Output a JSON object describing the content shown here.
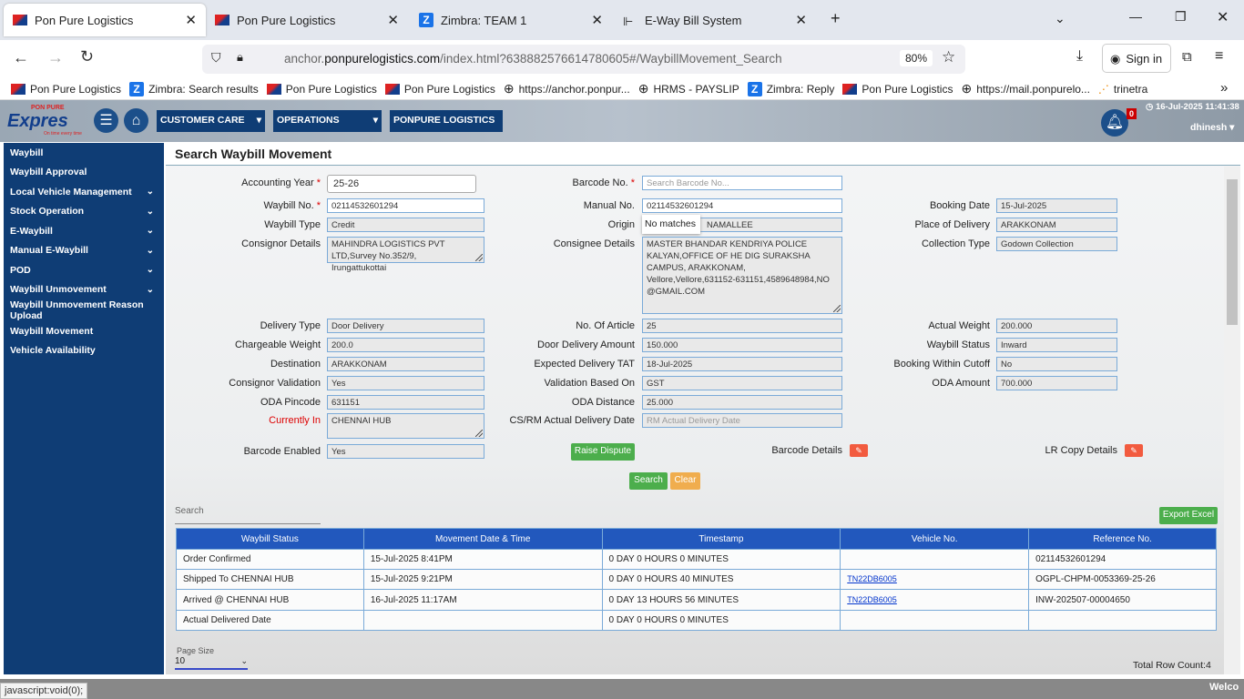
{
  "browser": {
    "tabs": [
      {
        "title": "Pon Pure Logistics",
        "active": true
      },
      {
        "title": "Pon Pure Logistics"
      },
      {
        "title": "Zimbra: TEAM 1"
      },
      {
        "title": "E-Way Bill System"
      }
    ],
    "url_prefix": "anchor.",
    "url_domain": "ponpurelogistics.com",
    "url_rest": "/index.html?638882576614780605#/WaybillMovement_Search",
    "zoom": "80%",
    "sign_in": "Sign in",
    "bookmarks": [
      "Pon Pure Logistics",
      "Zimbra: Search results",
      "Pon Pure Logistics",
      "Pon Pure Logistics",
      "https://anchor.ponpur...",
      "HRMS - PAYSLIP",
      "Zimbra: Reply",
      "Pon Pure Logistics",
      "https://mail.ponpurelo...",
      "trinetra"
    ],
    "status_text": "javascript:void(0);",
    "status_right": "Welco"
  },
  "header": {
    "logo_top": "PON PURE",
    "logo_main": "Expres",
    "logo_tag": "On time every time",
    "nav": [
      "CUSTOMER CARE",
      "OPERATIONS",
      "PONPURE LOGISTICS"
    ],
    "notif_count": "0",
    "datetime": "16-Jul-2025 11:41:38",
    "user": "dhinesh"
  },
  "sidebar": {
    "items": [
      {
        "label": "Waybill",
        "expand": false
      },
      {
        "label": "Waybill Approval",
        "expand": false
      },
      {
        "label": "Local Vehicle Management",
        "expand": true
      },
      {
        "label": "Stock Operation",
        "expand": true
      },
      {
        "label": "E-Waybill",
        "expand": true
      },
      {
        "label": "Manual E-Waybill",
        "expand": true
      },
      {
        "label": "POD",
        "expand": true
      },
      {
        "label": "Waybill Unmovement",
        "expand": true
      },
      {
        "label": "Waybill Unmovement Reason Upload",
        "expand": false
      },
      {
        "label": "Waybill Movement",
        "expand": false
      },
      {
        "label": "Vehicle Availability",
        "expand": false
      }
    ]
  },
  "page_title": "Search Waybill Movement",
  "form": {
    "col1": [
      {
        "label": "Accounting Year",
        "required": true,
        "value": "25-26",
        "kind": "select"
      },
      {
        "label": "Waybill No.",
        "required": true,
        "value": "02114532601294",
        "kind": "white"
      },
      {
        "label": "Waybill Type",
        "value": "Credit"
      },
      {
        "label": "Consignor Details",
        "value": "MAHINDRA LOGISTICS PVT LTD,Survey No.352/9, Irungattukottai",
        "kind": "textarea"
      },
      {
        "label": "Delivery Type",
        "value": "Door Delivery"
      },
      {
        "label": "Chargeable Weight",
        "value": "200.0"
      },
      {
        "label": "Destination",
        "value": "ARAKKONAM"
      },
      {
        "label": "Consignor Validation",
        "value": "Yes"
      },
      {
        "label": "ODA Pincode",
        "value": "631151"
      },
      {
        "label": "Currently In",
        "value": "CHENNAI HUB",
        "kind": "textarea",
        "red": true
      },
      {
        "label": "Barcode Enabled",
        "value": "Yes"
      }
    ],
    "col2": [
      {
        "label": "Barcode No.",
        "required": true,
        "placeholder": "Search Barcode No...",
        "kind": "white"
      },
      {
        "label": "Manual No.",
        "value": "02114532601294",
        "kind": "white"
      },
      {
        "label": "Origin",
        "value": "NAMALLEE",
        "popup": "No matches"
      },
      {
        "label": "Consignee Details",
        "value": "MASTER BHANDAR KENDRIYA POLICE KALYAN,OFFICE OF HE DIG SURAKSHA CAMPUS, ARAKKONAM, Vellore,Vellore,631152-631151,4589648984,NO @GMAIL.COM",
        "kind": "textarea"
      },
      {
        "label": "No. Of Article",
        "value": "25"
      },
      {
        "label": "Door Delivery Amount",
        "value": "150.000"
      },
      {
        "label": "Expected Delivery TAT",
        "value": "18-Jul-2025"
      },
      {
        "label": "Validation Based On",
        "value": "GST"
      },
      {
        "label": "ODA Distance",
        "value": "25.000"
      },
      {
        "label": "CS/RM Actual Delivery Date",
        "placeholder": "RM Actual Delivery Date"
      }
    ],
    "col3": [
      {
        "label": "Booking Date",
        "value": "15-Jul-2025"
      },
      {
        "label": "Place of Delivery",
        "value": "ARAKKONAM"
      },
      {
        "label": "Collection Type",
        "value": "Godown Collection"
      },
      {
        "label": "Actual Weight",
        "value": "200.000"
      },
      {
        "label": "Waybill Status",
        "value": "Inward"
      },
      {
        "label": "Booking Within Cutoff",
        "value": "No"
      },
      {
        "label": "ODA Amount",
        "value": "700.000"
      }
    ],
    "raise_dispute": "Raise Dispute",
    "barcode_details": "Barcode Details",
    "lr_copy_details": "LR Copy Details",
    "search": "Search",
    "clear": "Clear"
  },
  "grid": {
    "search_placeholder": "Search",
    "export": "Export Excel",
    "columns": [
      "Waybill Status",
      "Movement Date & Time",
      "Timestamp",
      "Vehicle No.",
      "Reference No."
    ],
    "rows": [
      [
        "Order Confirmed",
        "15-Jul-2025 8:41PM",
        "0 DAY 0 HOURS 0 MINUTES",
        "",
        "02114532601294"
      ],
      [
        "Shipped To CHENNAI HUB",
        "15-Jul-2025 9:21PM",
        "0 DAY 0 HOURS 40 MINUTES",
        "TN22DB6005",
        "OGPL-CHPM-0053369-25-26"
      ],
      [
        "Arrived @ CHENNAI HUB",
        "16-Jul-2025 11:17AM",
        "0 DAY 13 HOURS 56 MINUTES",
        "TN22DB6005",
        "INW-202507-00004650"
      ],
      [
        "Actual Delivered Date",
        "",
        "0 DAY 0 HOURS 0 MINUTES",
        "",
        ""
      ]
    ],
    "page_size_label": "Page Size",
    "page_size": "10",
    "total": "Total Row Count:4"
  },
  "colors": {
    "sidebar": "#0f3d75",
    "table_header": "#2258bd",
    "green": "#4cae4c",
    "orange": "#f0ad4e",
    "edit": "#f25b3f"
  }
}
